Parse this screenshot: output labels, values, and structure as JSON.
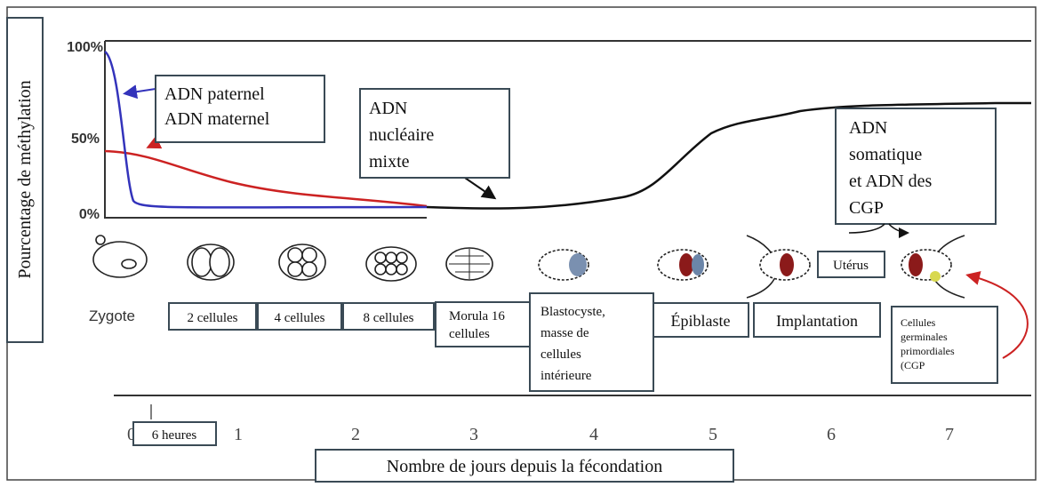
{
  "y_axis": {
    "label": "Pourcentage de méthylation",
    "ticks": [
      "100%",
      "50%",
      "0%"
    ]
  },
  "curve_labels": {
    "parental": [
      "ADN paternel",
      "ADN maternel"
    ],
    "mixed": [
      "ADN",
      "nucléaire",
      "mixte"
    ],
    "somatic": [
      "ADN",
      "somatique",
      "et ADN des",
      "CGP"
    ]
  },
  "uterus": "Utérus",
  "stages": {
    "zygote": "Zygote",
    "two": "2 cellules",
    "four": "4 cellules",
    "eight": "8 cellules",
    "morula": [
      "Morula 16",
      "cellules"
    ],
    "blastocyst": [
      "Blastocyste,",
      "masse de",
      "cellules",
      "intérieure"
    ],
    "epiblast": "Épiblaste",
    "implantation": "Implantation",
    "pgc": [
      "Cellules",
      "germinales",
      "primordiales",
      "(CGP"
    ]
  },
  "x_axis": {
    "ticks": [
      "0",
      "1",
      "2",
      "3",
      "4",
      "5",
      "6",
      "7"
    ],
    "hours": "6 heures",
    "label": "Nombre de jours depuis la fécondation"
  }
}
